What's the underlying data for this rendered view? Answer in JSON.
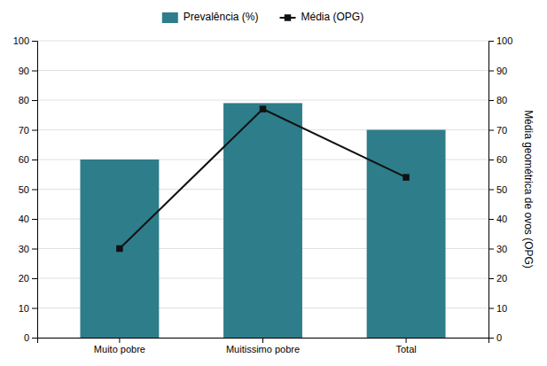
{
  "chart_data": {
    "type": "bar",
    "categories": [
      "Muito pobre",
      "Muitissimo pobre",
      "Total"
    ],
    "series": [
      {
        "name": "Prevalência (%)",
        "color": "#2e7d8a",
        "values": [
          60,
          79,
          70
        ]
      },
      {
        "name": "Média (OPG)",
        "type": "line",
        "axis": "y2",
        "marker": "square",
        "line_style": "solid",
        "color": "#111111",
        "values": [
          30,
          77,
          54
        ]
      }
    ],
    "ylim": [
      0,
      100
    ],
    "yticks": [
      0,
      10,
      20,
      30,
      40,
      50,
      60,
      70,
      80,
      90,
      100
    ],
    "y2lim": [
      0,
      100
    ],
    "y2ticks": [
      0,
      10,
      20,
      30,
      40,
      50,
      60,
      70,
      80,
      90,
      100
    ],
    "y2label": "Média geométrica de ovos (OPG)",
    "grid": true,
    "legend": "top"
  }
}
